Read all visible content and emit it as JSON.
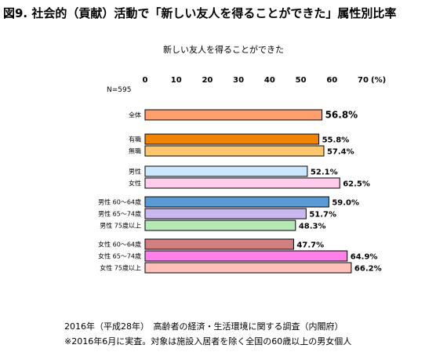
{
  "figure_title": "図9. 社会的（貢献）活動で「新しい友人を得ることができた」属性別比率",
  "chart_data": {
    "type": "bar",
    "orientation": "horizontal",
    "title": "新しい友人を得ることができた",
    "sample_note": "N=595",
    "unit": "(%)",
    "xlim": [
      0,
      70
    ],
    "ticks": [
      0,
      10,
      20,
      30,
      40,
      50,
      60,
      70
    ],
    "grid": false,
    "categories": [
      "全体",
      "有職",
      "無職",
      "男性",
      "女性",
      "男性 60～64歳",
      "男性 65～74歳",
      "男性 75歳以上",
      "女性 60～64歳",
      "女性 65～74歳",
      "女性 75歳以上"
    ],
    "values": [
      56.8,
      55.8,
      57.4,
      52.1,
      62.5,
      59.0,
      51.7,
      48.3,
      47.7,
      64.9,
      66.2
    ],
    "value_labels": [
      "56.8%",
      "55.8%",
      "57.4%",
      "52.1%",
      "62.5%",
      "59.0%",
      "51.7%",
      "48.3%",
      "47.7%",
      "64.9%",
      "66.2%"
    ],
    "bar_colors": [
      "#FF9F6E",
      "#F08300",
      "#FFC66E",
      "#CCE8FF",
      "#FFCCEE",
      "#5B9BD5",
      "#C9B8F0",
      "#B5E8B5",
      "#D08080",
      "#FF80E8",
      "#FFC0BC"
    ]
  },
  "footer": {
    "line1": "2016年（平成28年）　高齢者の経済・生活環境に関する調査（内閣府）",
    "line2": "※2016年6月に実査。対象は施設入居者を除く全国の60歳以上の男女個人"
  }
}
